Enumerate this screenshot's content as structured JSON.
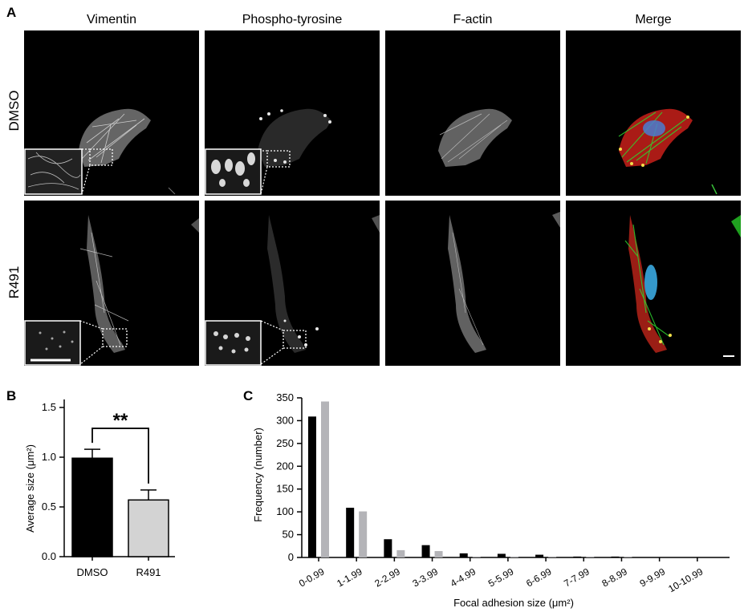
{
  "figure": {
    "panel_a_label": "A",
    "panel_b_label": "B",
    "panel_c_label": "C",
    "columns": [
      "Vimentin",
      "Phospho-tyrosine",
      "F-actin",
      "Merge"
    ],
    "rows": [
      "DMSO",
      "R491"
    ]
  },
  "chart_data": [
    {
      "type": "bar",
      "ylabel": "Average size (μm²)",
      "categories": [
        "DMSO",
        "R491"
      ],
      "values": [
        0.99,
        0.57
      ],
      "errors": [
        0.09,
        0.1
      ],
      "colors": [
        "#000000",
        "#d3d3d3"
      ],
      "ylim": [
        0,
        1.5
      ],
      "yticks": [
        "0.0",
        "0.5",
        "1.0",
        "1.5"
      ],
      "significance": "**"
    },
    {
      "type": "bar",
      "xlabel": "Focal adhesion size (μm²)",
      "ylabel": "Frequency (number)",
      "categories": [
        "0-0.99",
        "1-1.99",
        "2-2.99",
        "3-3.99",
        "4-4.99",
        "5-5.99",
        "6-6.99",
        "7-7.99",
        "8-8.99",
        "9-9.99",
        "10-10.99"
      ],
      "series": [
        {
          "values": [
            309,
            109,
            40,
            27,
            9,
            8,
            6,
            2,
            2,
            0,
            0
          ],
          "color": "#000000"
        },
        {
          "values": [
            342,
            101,
            16,
            14,
            1,
            2,
            1,
            1,
            1,
            0,
            0
          ],
          "color": "#b4b4b8"
        }
      ],
      "ylim": [
        0,
        350
      ],
      "yticks": [
        "0",
        "50",
        "100",
        "150",
        "200",
        "250",
        "300",
        "350"
      ]
    }
  ]
}
